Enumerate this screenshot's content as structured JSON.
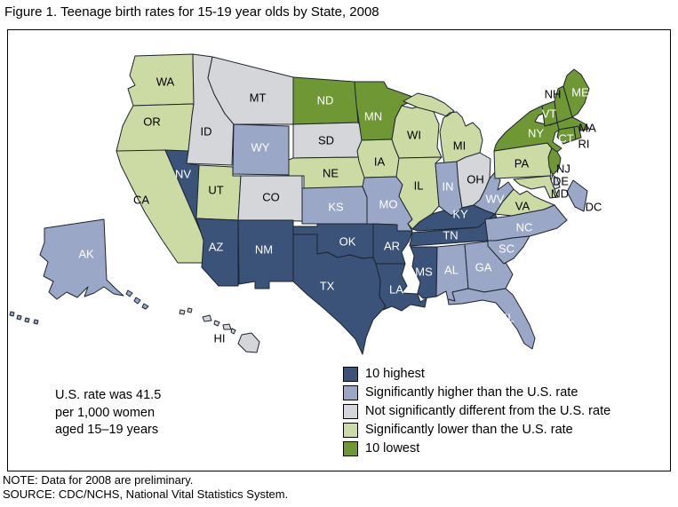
{
  "title": "Figure 1. Teenage birth rates for 15-19 year olds by State, 2008",
  "note_lines": [
    "U.S. rate was 41.5",
    "per 1,000 women",
    "aged 15–19 years"
  ],
  "footer_lines": [
    "NOTE: Data for 2008 are preliminary.",
    "SOURCE: CDC/NCHS, National Vital Statistics System."
  ],
  "legend": {
    "items": [
      {
        "key": "highest",
        "label": "10 highest",
        "color": "#3B5279"
      },
      {
        "key": "higher",
        "label": "Significantly higher than the U.S. rate",
        "color": "#9BA7C7"
      },
      {
        "key": "not_different",
        "label": "Not significantly different from the U.S. rate",
        "color": "#D5D6D9"
      },
      {
        "key": "lower",
        "label": "Significantly lower than the U.S. rate",
        "color": "#CCDAA3"
      },
      {
        "key": "lowest",
        "label": "10 lowest",
        "color": "#6F9733"
      }
    ]
  },
  "map": {
    "stroke_color": "#1C2430",
    "label_text_dark": "#000000",
    "label_text_light": "#FFFFFF",
    "states": [
      {
        "abbr": "WA",
        "category": "lower"
      },
      {
        "abbr": "OR",
        "category": "lower"
      },
      {
        "abbr": "CA",
        "category": "lower"
      },
      {
        "abbr": "NV",
        "category": "highest"
      },
      {
        "abbr": "ID",
        "category": "not_different"
      },
      {
        "abbr": "MT",
        "category": "not_different"
      },
      {
        "abbr": "WY",
        "category": "higher"
      },
      {
        "abbr": "UT",
        "category": "lower"
      },
      {
        "abbr": "CO",
        "category": "not_different"
      },
      {
        "abbr": "AZ",
        "category": "highest"
      },
      {
        "abbr": "NM",
        "category": "highest"
      },
      {
        "abbr": "ND",
        "category": "lowest"
      },
      {
        "abbr": "SD",
        "category": "not_different"
      },
      {
        "abbr": "NE",
        "category": "lower"
      },
      {
        "abbr": "KS",
        "category": "higher"
      },
      {
        "abbr": "OK",
        "category": "highest"
      },
      {
        "abbr": "TX",
        "category": "highest"
      },
      {
        "abbr": "MN",
        "category": "lowest"
      },
      {
        "abbr": "IA",
        "category": "lower"
      },
      {
        "abbr": "MO",
        "category": "higher"
      },
      {
        "abbr": "AR",
        "category": "highest"
      },
      {
        "abbr": "LA",
        "category": "highest"
      },
      {
        "abbr": "WI",
        "category": "lower"
      },
      {
        "abbr": "IL",
        "category": "lower"
      },
      {
        "abbr": "MI",
        "category": "lower"
      },
      {
        "abbr": "IN",
        "category": "higher"
      },
      {
        "abbr": "OH",
        "category": "not_different"
      },
      {
        "abbr": "KY",
        "category": "highest"
      },
      {
        "abbr": "TN",
        "category": "highest"
      },
      {
        "abbr": "MS",
        "category": "highest"
      },
      {
        "abbr": "AL",
        "category": "higher"
      },
      {
        "abbr": "GA",
        "category": "higher"
      },
      {
        "abbr": "FL",
        "category": "higher"
      },
      {
        "abbr": "WV",
        "category": "higher"
      },
      {
        "abbr": "VA",
        "category": "lower"
      },
      {
        "abbr": "NC",
        "category": "higher"
      },
      {
        "abbr": "SC",
        "category": "higher"
      },
      {
        "abbr": "PA",
        "category": "lower"
      },
      {
        "abbr": "NY",
        "category": "lowest"
      },
      {
        "abbr": "NJ",
        "category": "lowest"
      },
      {
        "abbr": "DE",
        "category": "not_different"
      },
      {
        "abbr": "MD",
        "category": "lower"
      },
      {
        "abbr": "DC",
        "category": "higher"
      },
      {
        "abbr": "VT",
        "category": "lowest"
      },
      {
        "abbr": "NH",
        "category": "lowest"
      },
      {
        "abbr": "ME",
        "category": "lowest"
      },
      {
        "abbr": "MA",
        "category": "lowest"
      },
      {
        "abbr": "CT",
        "category": "lowest"
      },
      {
        "abbr": "RI",
        "category": "lowest"
      },
      {
        "abbr": "AK",
        "category": "higher"
      },
      {
        "abbr": "HI",
        "category": "not_different"
      }
    ]
  },
  "chart_data": {
    "type": "choropleth_map",
    "title": "Figure 1. Teenage birth rates for 15-19 year olds by State, 2008",
    "us_reference_rate": "U.S. rate was 41.5 per 1,000 women aged 15–19 years",
    "categories": [
      "10 highest",
      "Significantly higher than the U.S. rate",
      "Not significantly different from the U.S. rate",
      "Significantly lower than the U.S. rate",
      "10 lowest"
    ],
    "groups": {
      "10 highest": [
        "NV",
        "AZ",
        "NM",
        "TX",
        "OK",
        "AR",
        "LA",
        "MS",
        "TN",
        "KY"
      ],
      "Significantly higher than the U.S. rate": [
        "AK",
        "WY",
        "KS",
        "MO",
        "IN",
        "WV",
        "NC",
        "SC",
        "GA",
        "AL",
        "FL",
        "DC"
      ],
      "Not significantly different from the U.S. rate": [
        "MT",
        "ID",
        "SD",
        "CO",
        "OH",
        "DE",
        "HI"
      ],
      "Significantly lower than the U.S. rate": [
        "WA",
        "OR",
        "CA",
        "UT",
        "NE",
        "IA",
        "WI",
        "MI",
        "IL",
        "PA",
        "VA",
        "MD"
      ],
      "10 lowest": [
        "ND",
        "MN",
        "NY",
        "NJ",
        "CT",
        "RI",
        "MA",
        "VT",
        "NH",
        "ME"
      ]
    },
    "legend_position": "bottom-right",
    "notes": [
      "NOTE: Data for 2008 are preliminary.",
      "SOURCE: CDC/NCHS, National Vital Statistics System."
    ]
  }
}
